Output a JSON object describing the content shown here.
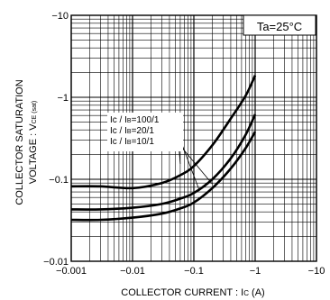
{
  "chart_data": {
    "type": "line",
    "xlabel_main": "COLLECTOR CURRENT : I",
    "xlabel_sub": "C",
    "xlabel_tail": " (A)",
    "ylabel_line1": "COLLECTOR SATURATION",
    "ylabel_line2_main": "VOLTAGE : V",
    "ylabel_line2_sub": "CE (sat)",
    "condition": "Ta=25°C",
    "x_scale": "log",
    "y_scale": "log",
    "xlim": [
      -0.001,
      -10
    ],
    "ylim": [
      -0.01,
      -10
    ],
    "x_ticks": [
      {
        "value": -0.001,
        "label": "−0.001"
      },
      {
        "value": -0.01,
        "label": "−0.01"
      },
      {
        "value": -0.1,
        "label": "−0.1"
      },
      {
        "value": -1,
        "label": "−1"
      },
      {
        "value": -10,
        "label": "−10"
      }
    ],
    "y_ticks": [
      {
        "value": -0.01,
        "label": "−0.01"
      },
      {
        "value": -0.1,
        "label": "−0.1"
      },
      {
        "value": -1,
        "label": "−1"
      },
      {
        "value": -10,
        "label": "−10"
      }
    ],
    "grid": true,
    "series": [
      {
        "label_a": "Ic / I",
        "label_b": "B",
        "label_c": "=100/1",
        "x": [
          -0.001,
          -0.003,
          -0.01,
          -0.03,
          -0.06,
          -0.1,
          -0.2,
          -0.4,
          -0.7,
          -1.0
        ],
        "y": [
          -0.082,
          -0.082,
          -0.078,
          -0.09,
          -0.112,
          -0.145,
          -0.26,
          -0.55,
          -1.05,
          -1.85
        ]
      },
      {
        "label_a": "Ic / I",
        "label_b": "B",
        "label_c": "=20/1",
        "x": [
          -0.001,
          -0.003,
          -0.01,
          -0.03,
          -0.06,
          -0.1,
          -0.2,
          -0.4,
          -0.7,
          -1.0
        ],
        "y": [
          -0.043,
          -0.043,
          -0.045,
          -0.05,
          -0.058,
          -0.068,
          -0.1,
          -0.18,
          -0.35,
          -0.62
        ]
      },
      {
        "label_a": "Ic / I",
        "label_b": "B",
        "label_c": "=10/1",
        "x": [
          -0.001,
          -0.003,
          -0.01,
          -0.03,
          -0.06,
          -0.1,
          -0.2,
          -0.4,
          -0.7,
          -1.0
        ],
        "y": [
          -0.032,
          -0.032,
          -0.034,
          -0.038,
          -0.044,
          -0.052,
          -0.078,
          -0.135,
          -0.24,
          -0.38
        ]
      }
    ]
  }
}
